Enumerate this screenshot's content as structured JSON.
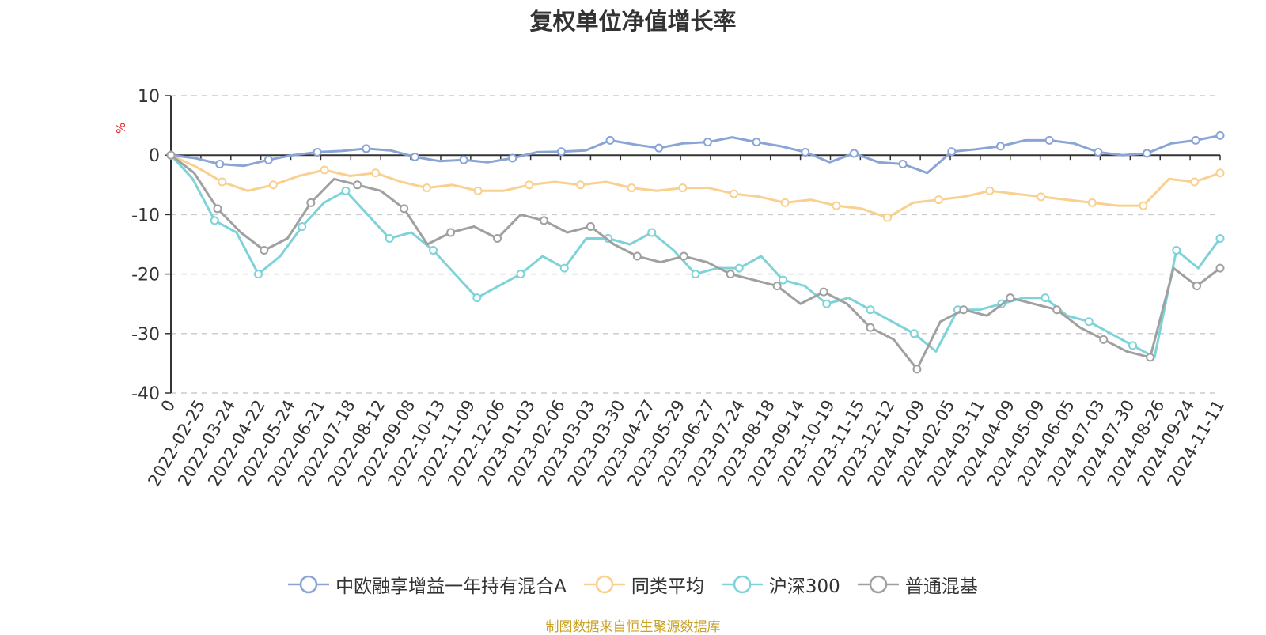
{
  "chart_data": {
    "type": "line",
    "title": "复权单位净值增长率",
    "ylabel": "%",
    "ylim": [
      -40,
      10
    ],
    "yticks": [
      10,
      0,
      -10,
      -20,
      -30,
      -40
    ],
    "grid": true,
    "legend_position": "bottom",
    "x_tick_labels": [
      "0",
      "2022-02-25",
      "2022-03-24",
      "2022-04-22",
      "2022-05-24",
      "2022-06-21",
      "2022-07-18",
      "2022-08-12",
      "2022-09-08",
      "2022-10-13",
      "2022-11-09",
      "2022-12-06",
      "2023-01-03",
      "2023-02-06",
      "2023-03-03",
      "2023-03-30",
      "2023-04-27",
      "2023-05-29",
      "2023-06-27",
      "2023-07-24",
      "2023-08-18",
      "2023-09-14",
      "2023-10-19",
      "2023-11-15",
      "2023-12-12",
      "2024-01-09",
      "2024-02-05",
      "2024-03-11",
      "2024-04-09",
      "2024-05-09",
      "2024-06-05",
      "2024-07-03",
      "2024-07-30",
      "2024-08-26",
      "2024-09-24",
      "2024-11-11"
    ],
    "series": [
      {
        "name": "中欧融享增益一年持有混合A",
        "color": "#8aa4d6",
        "values": [
          0,
          -0.5,
          -1.5,
          -1.8,
          -0.8,
          0,
          0.5,
          0.7,
          1.1,
          0.8,
          -0.3,
          -1,
          -0.8,
          -1.2,
          -0.5,
          0.5,
          0.6,
          0.8,
          2.5,
          1.8,
          1.2,
          2,
          2.2,
          3,
          2.2,
          1.5,
          0.5,
          -1.2,
          0.3,
          -1.2,
          -1.5,
          -3,
          0.6,
          1,
          1.5,
          2.5,
          2.5,
          2,
          0.5,
          0,
          0.3,
          2,
          2.5,
          3.3
        ]
      },
      {
        "name": "同类平均",
        "color": "#f9d08f",
        "values": [
          0,
          -2,
          -4.5,
          -6,
          -5,
          -3.5,
          -2.5,
          -3.5,
          -3,
          -4.5,
          -5.5,
          -5,
          -6,
          -6,
          -5,
          -4.5,
          -5,
          -4.5,
          -5.5,
          -6,
          -5.5,
          -5.5,
          -6.5,
          -7,
          -8,
          -7.5,
          -8.5,
          -9,
          -10.5,
          -8,
          -7.5,
          -7,
          -6,
          -6.5,
          -7,
          -7.5,
          -8,
          -8.5,
          -8.5,
          -4,
          -4.5,
          -3
        ]
      },
      {
        "name": "沪深300",
        "color": "#7dd3d8",
        "values": [
          0,
          -4,
          -11,
          -13,
          -20,
          -17,
          -12,
          -8,
          -6,
          -10,
          -14,
          -13,
          -16,
          -20,
          -24,
          -22,
          -20,
          -17,
          -19,
          -14,
          -14,
          -15,
          -13,
          -16,
          -20,
          -19,
          -19,
          -17,
          -21,
          -22,
          -25,
          -24,
          -26,
          -28,
          -30,
          -33,
          -26,
          -26,
          -25,
          -24,
          -24,
          -27,
          -28,
          -30,
          -32,
          -34,
          -16,
          -19,
          -14
        ]
      },
      {
        "name": "普通混基",
        "color": "#a0a0a0",
        "values": [
          0,
          -3,
          -9,
          -13,
          -16,
          -14,
          -8,
          -4,
          -5,
          -6,
          -9,
          -15,
          -13,
          -12,
          -14,
          -10,
          -11,
          -13,
          -12,
          -15,
          -17,
          -18,
          -17,
          -18,
          -20,
          -21,
          -22,
          -25,
          -23,
          -25,
          -29,
          -31,
          -36,
          -28,
          -26,
          -27,
          -24,
          -25,
          -26,
          -29,
          -31,
          -33,
          -34,
          -19,
          -22,
          -19
        ]
      }
    ]
  },
  "source_note": "制图数据来自恒生聚源数据库"
}
